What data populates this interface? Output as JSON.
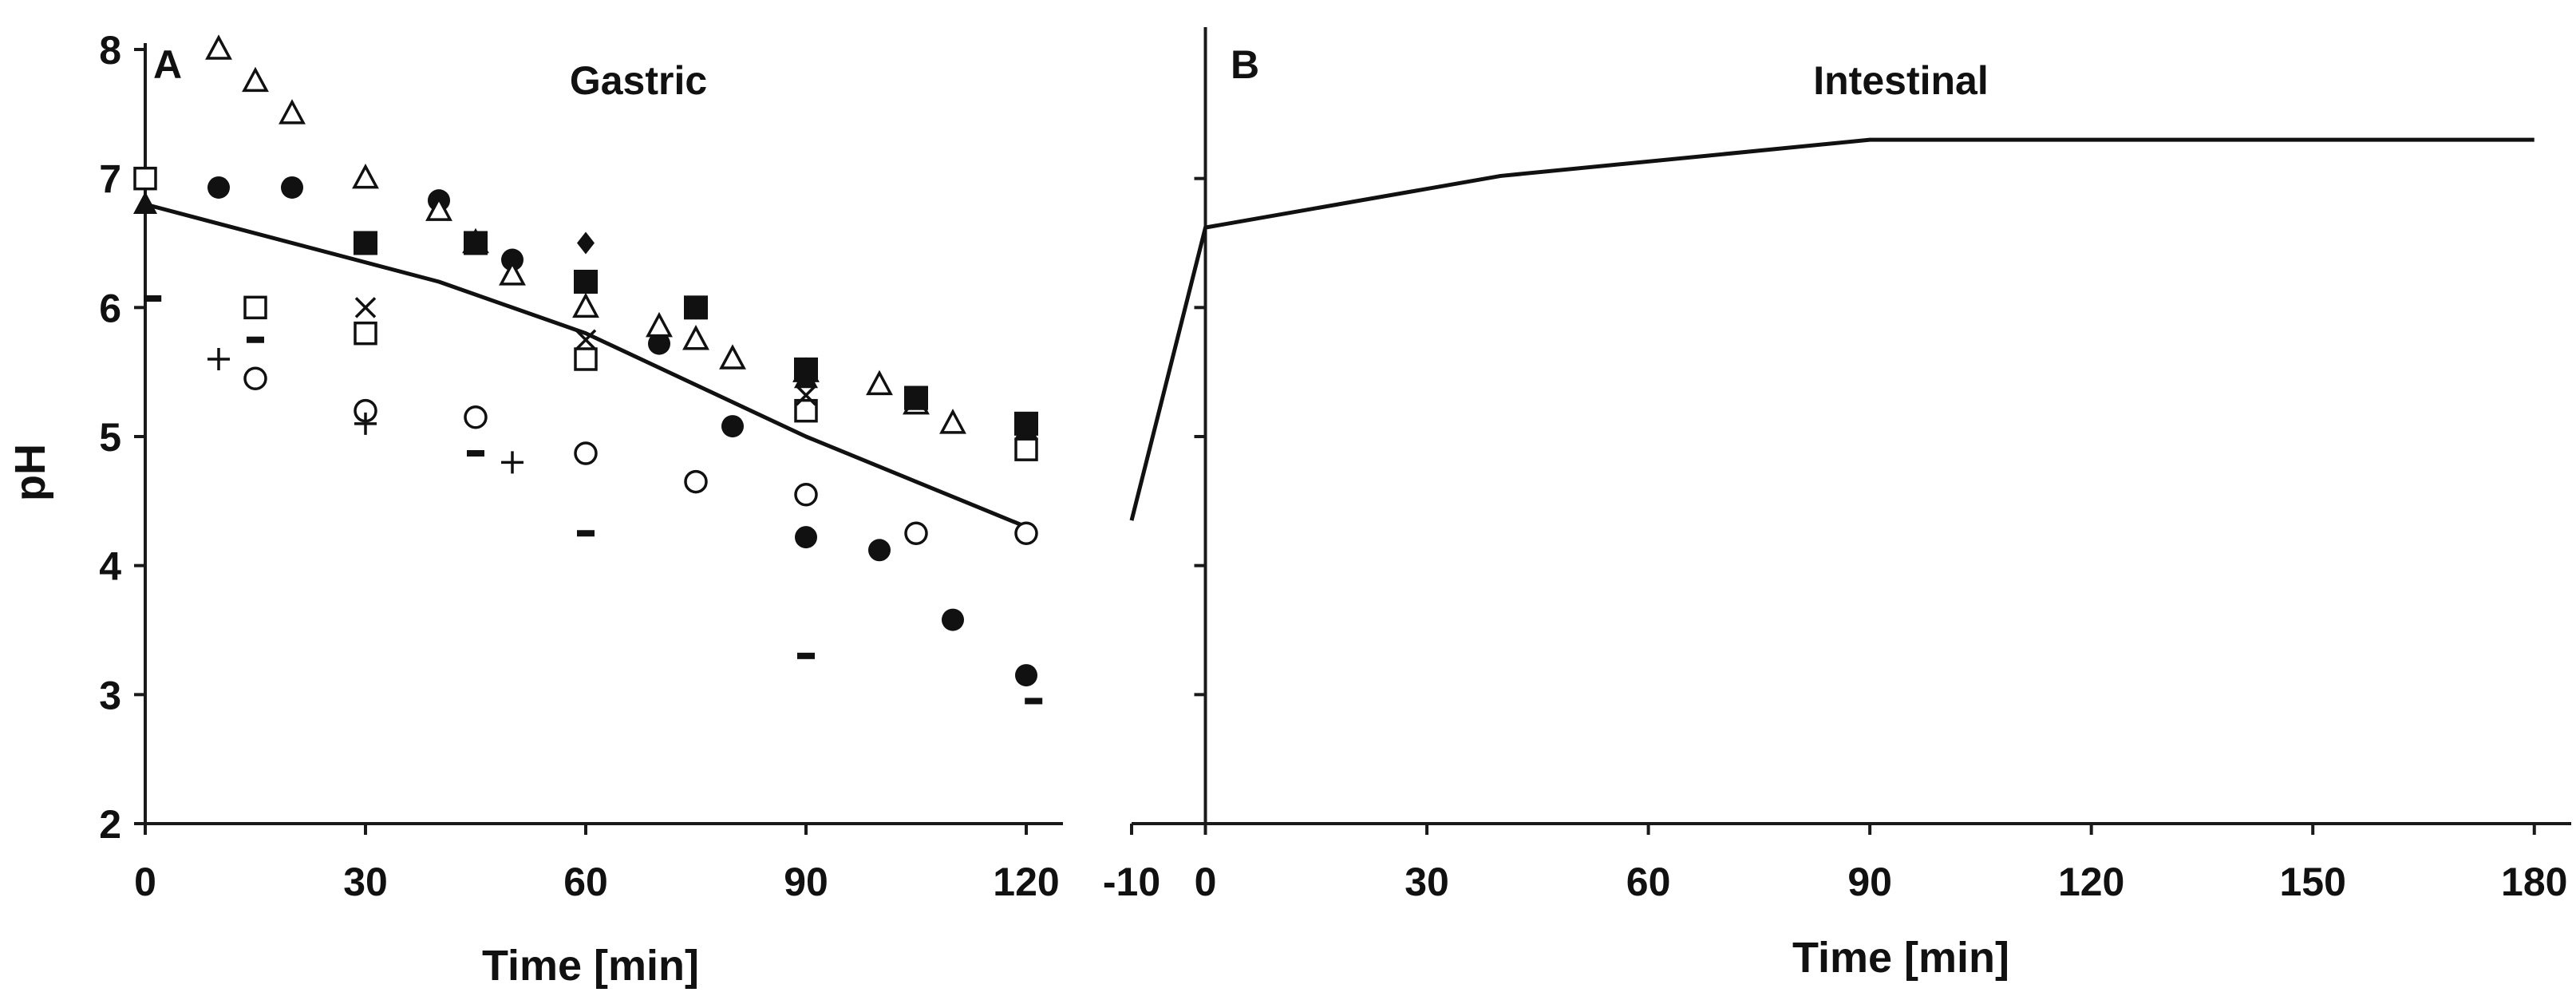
{
  "chart_data": [
    {
      "type": "scatter",
      "panel": "A",
      "title": "Gastric",
      "xlabel": "Time [min]",
      "ylabel": "pH",
      "xlim": [
        0,
        125
      ],
      "ylim": [
        2,
        8
      ],
      "xticks": [
        0,
        30,
        60,
        90,
        120
      ],
      "yticks": [
        2,
        3,
        4,
        5,
        6,
        7,
        8
      ],
      "grid": false,
      "line": {
        "name": "average",
        "x": [
          0,
          40,
          60,
          90,
          120
        ],
        "y": [
          6.8,
          6.2,
          5.8,
          5.0,
          4.3
        ]
      },
      "series": [
        {
          "name": "filled circle",
          "marker": "filled-circle",
          "x": [
            10,
            20,
            40,
            50,
            70,
            80,
            90,
            100,
            110,
            120
          ],
          "y": [
            6.93,
            6.93,
            6.83,
            6.37,
            5.72,
            5.08,
            4.22,
            4.12,
            3.58,
            3.15
          ]
        },
        {
          "name": "open circle",
          "marker": "open-circle",
          "x": [
            15,
            30,
            45,
            60,
            75,
            90,
            105,
            120
          ],
          "y": [
            5.45,
            5.2,
            5.15,
            4.87,
            4.65,
            4.55,
            4.25,
            4.25
          ]
        },
        {
          "name": "open triangle",
          "marker": "open-triangle",
          "x": [
            10,
            15,
            20,
            30,
            40,
            45,
            50,
            60,
            70,
            75,
            80,
            90,
            100,
            105,
            110
          ],
          "y": [
            8.0,
            7.75,
            7.5,
            7.0,
            6.75,
            6.5,
            6.25,
            6.0,
            5.85,
            5.75,
            5.6,
            5.5,
            5.4,
            5.25,
            5.1
          ]
        },
        {
          "name": "filled triangle",
          "marker": "filled-triangle",
          "x": [
            0,
            45,
            90,
            105,
            120
          ],
          "y": [
            6.8,
            6.5,
            5.45,
            5.28,
            5.05
          ]
        },
        {
          "name": "open square",
          "marker": "open-square",
          "x": [
            0,
            15,
            30,
            60,
            90,
            120
          ],
          "y": [
            7.0,
            6.0,
            5.8,
            5.6,
            5.2,
            4.9
          ]
        },
        {
          "name": "filled square",
          "marker": "filled-square",
          "x": [
            30,
            45,
            60,
            75,
            90,
            105,
            120
          ],
          "y": [
            6.5,
            6.5,
            6.2,
            6.0,
            5.52,
            5.3,
            5.1
          ]
        },
        {
          "name": "filled diamond",
          "marker": "filled-diamond",
          "x": [
            60
          ],
          "y": [
            6.5
          ]
        },
        {
          "name": "cross",
          "marker": "cross",
          "x": [
            30,
            60,
            90,
            105
          ],
          "y": [
            6.0,
            5.75,
            5.32,
            5.28
          ]
        },
        {
          "name": "plus",
          "marker": "plus",
          "x": [
            10,
            30,
            50
          ],
          "y": [
            5.6,
            5.1,
            4.8
          ]
        },
        {
          "name": "dash",
          "marker": "dash",
          "x": [
            1,
            15,
            45,
            60,
            90,
            121
          ],
          "y": [
            6.07,
            5.75,
            4.87,
            4.25,
            3.3,
            2.95
          ]
        }
      ]
    },
    {
      "type": "line",
      "panel": "B",
      "title": "Intestinal",
      "xlabel": "Time [min]",
      "ylabel": "",
      "xlim": [
        -10,
        185
      ],
      "ylim": [
        2,
        8
      ],
      "xticks": [
        -10,
        0,
        30,
        60,
        90,
        120,
        150,
        180
      ],
      "yticks": [
        3,
        4,
        5,
        6,
        7
      ],
      "grid": false,
      "series": [
        {
          "name": "pH profile",
          "x": [
            -10,
            0,
            20,
            40,
            90,
            180
          ],
          "y": [
            4.35,
            6.62,
            6.82,
            7.02,
            7.3,
            7.3
          ]
        }
      ]
    }
  ]
}
